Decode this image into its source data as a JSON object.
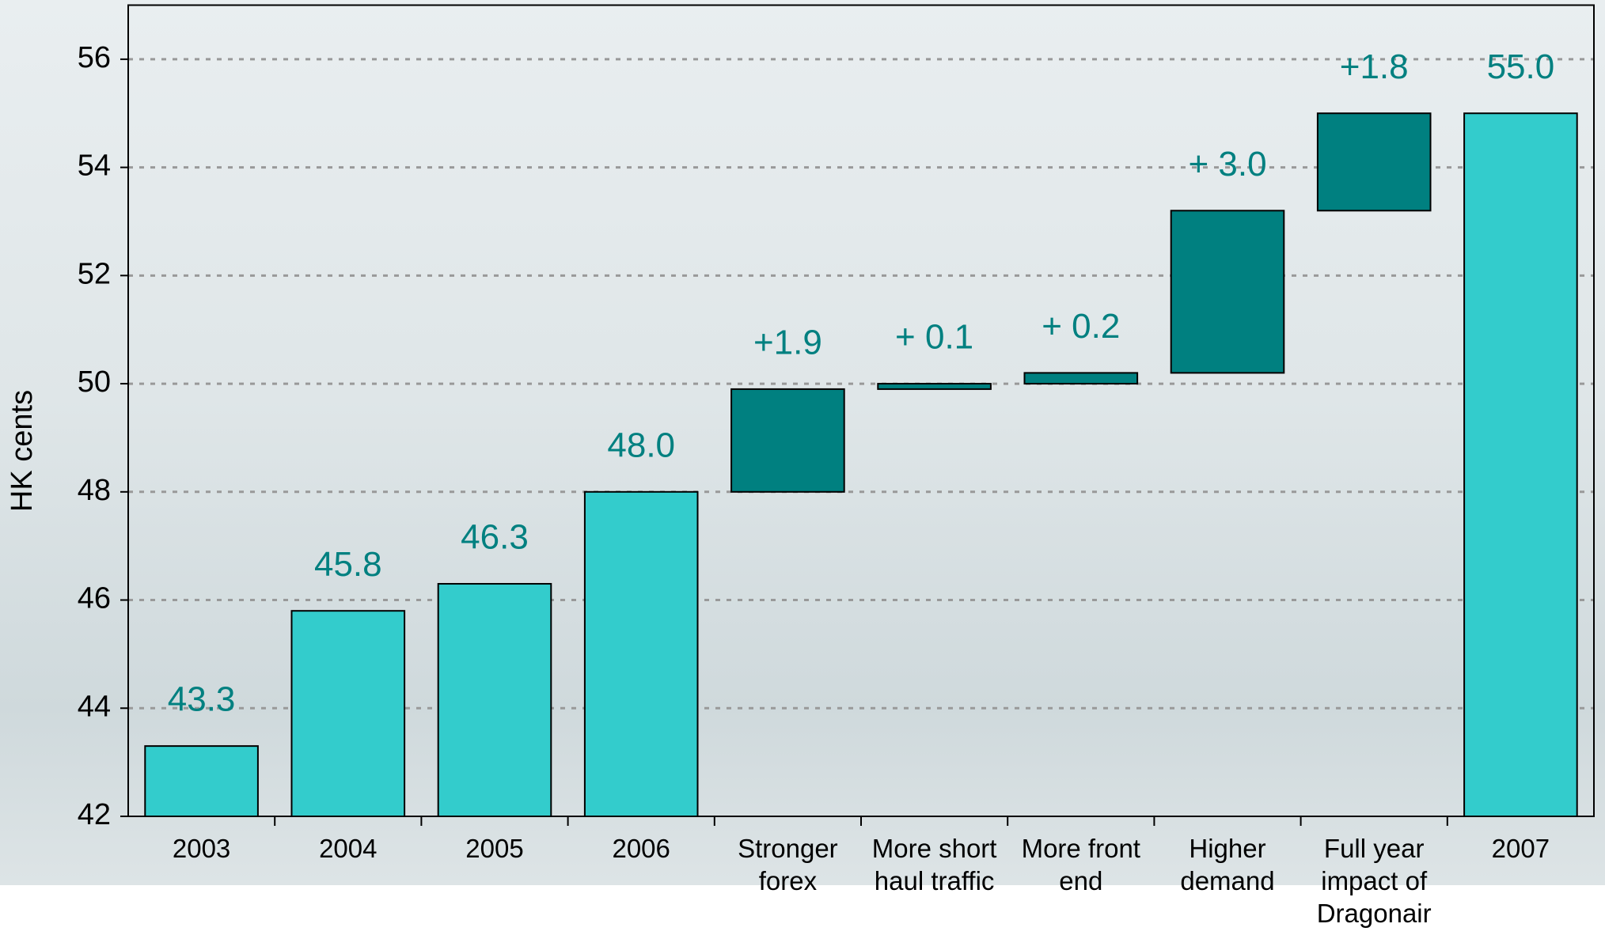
{
  "chart_data": {
    "type": "waterfall",
    "y_label": "HK cents",
    "categories": [
      "2003",
      "2004",
      "2005",
      "2006",
      "Stronger forex",
      "More short haul traffic",
      "More front end",
      "Higher demand",
      "Full year impact of Dragonair",
      "2007"
    ],
    "values": [
      43.3,
      45.8,
      46.3,
      48.0,
      1.9,
      0.1,
      0.2,
      3.0,
      1.8,
      55.0
    ],
    "value_labels": [
      "43.3",
      "45.8",
      "46.3",
      "48.0",
      "+1.9",
      "+ 0.1",
      "+ 0.2",
      "+ 3.0",
      "+1.8",
      "55.0"
    ],
    "measure": [
      "absolute",
      "absolute",
      "absolute",
      "absolute",
      "relative",
      "relative",
      "relative",
      "relative",
      "relative",
      "absolute"
    ],
    "colors": {
      "absolute": "#33cccc",
      "relative": "#008080"
    },
    "label_color": "#008080",
    "ylim": [
      42,
      57
    ],
    "yticks": [
      42,
      44,
      46,
      48,
      50,
      52,
      54,
      56
    ],
    "grid": true
  }
}
